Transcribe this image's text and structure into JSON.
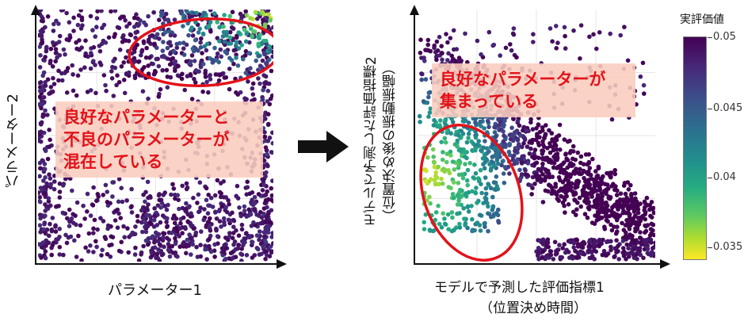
{
  "left_panel": {
    "xlabel": "パラメーター1",
    "ylabel": "パラメーター2",
    "callout_lines": [
      "良好なパラメーターと",
      "不良のパラメーターが",
      "混在している"
    ]
  },
  "right_panel": {
    "xlabel_lines": [
      "モデルで予測した評価指標1",
      "（位置決め時間）"
    ],
    "ylabel_lines": [
      "モデルで予測した評価指標2",
      "（位置決め後の振動振幅）"
    ],
    "callout_lines": [
      "良好なパラメーターが",
      "集まっている"
    ]
  },
  "colorbar": {
    "title": "実評価値",
    "ticks": [
      "0.05",
      "0.045",
      "0.04",
      "0.035"
    ],
    "range": [
      0.034,
      0.05
    ],
    "colormap": "viridis_r"
  },
  "colors": {
    "highlight": "#e3121a",
    "callout_bg": "#facdbe",
    "axis": "#111111"
  },
  "chart_data": [
    {
      "type": "scatter",
      "xlabel": "パラメーター1",
      "ylabel": "パラメーター2",
      "color_scale": "実評価値",
      "point_count_approx": 1300,
      "grid": true,
      "tick_labels": false,
      "good_region": "top-right",
      "annotation": "良好なパラメーターと不良のパラメーターが混在している"
    },
    {
      "type": "scatter",
      "xlabel": "モデルで予測した評価指標1（位置決め時間）",
      "ylabel": "モデルで予測した評価指標2（位置決め後の振動振幅）",
      "color_scale": "実評価値",
      "point_count_approx": 1300,
      "grid": true,
      "tick_labels": false,
      "good_region": "lower-left",
      "annotation": "良好なパラメーターが集まっている"
    }
  ]
}
